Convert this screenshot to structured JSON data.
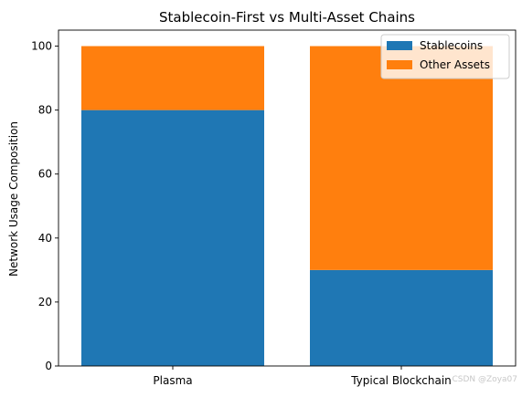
{
  "chart_data": {
    "type": "bar",
    "stacked": true,
    "title": "Stablecoin-First vs Multi-Asset Chains",
    "xlabel": "",
    "ylabel": "Network Usage Composition",
    "categories": [
      "Plasma",
      "Typical Blockchain"
    ],
    "series": [
      {
        "name": "Stablecoins",
        "values": [
          80,
          30
        ],
        "color": "#1f77b4"
      },
      {
        "name": "Other Assets",
        "values": [
          20,
          70
        ],
        "color": "#ff7f0e"
      }
    ],
    "ylim": [
      0,
      105
    ],
    "yticks": [
      0,
      20,
      40,
      60,
      80,
      100
    ],
    "grid": false,
    "legend_position": "top-right"
  },
  "watermark": "CSDN @Zoya07"
}
